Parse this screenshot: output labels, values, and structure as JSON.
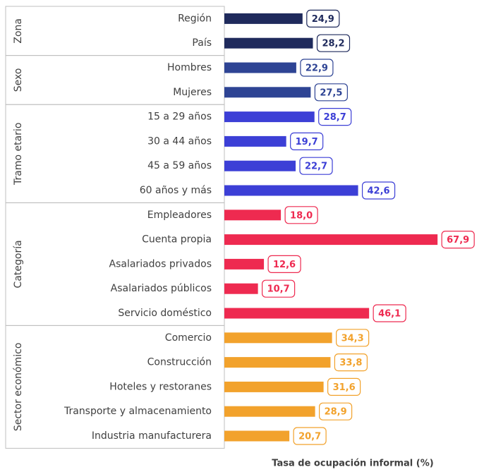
{
  "chart_data": {
    "type": "bar",
    "orientation": "horizontal",
    "x_label": "Tasa de ocupación informal (%)",
    "groups": [
      {
        "name": "Zona",
        "color": "#1f2a5c",
        "categories": [
          "Región",
          "País"
        ],
        "values": [
          24.9,
          28.2
        ],
        "value_labels": [
          "24,9",
          "28,2"
        ]
      },
      {
        "name": "Sexo",
        "color": "#2e4494",
        "categories": [
          "Hombres",
          "Mujeres"
        ],
        "values": [
          22.9,
          27.5
        ],
        "value_labels": [
          "22,9",
          "27,5"
        ]
      },
      {
        "name": "Tramo etario",
        "color": "#3c3fd6",
        "categories": [
          "15 a 29 años",
          "30 a 44 años",
          "45 a 59 años",
          "60 años y más"
        ],
        "values": [
          28.7,
          19.7,
          22.7,
          42.6
        ],
        "value_labels": [
          "28,7",
          "19,7",
          "22,7",
          "42,6"
        ]
      },
      {
        "name": "Categoría",
        "color": "#ee2a50",
        "categories": [
          "Empleadores",
          "Cuenta propia",
          "Asalariados privados",
          "Asalariados públicos",
          "Servicio doméstico"
        ],
        "values": [
          18.0,
          67.9,
          12.6,
          10.7,
          46.1
        ],
        "value_labels": [
          "18,0",
          "67,9",
          "12,6",
          "10,7",
          "46,1"
        ]
      },
      {
        "name": "Sector económico",
        "color": "#f2a22c",
        "categories": [
          "Comercio",
          "Construcción",
          "Hoteles y restoranes",
          "Transporte y almacenamiento",
          "Industria manufacturera"
        ],
        "values": [
          34.3,
          33.8,
          31.6,
          28.9,
          20.7
        ],
        "value_labels": [
          "34,3",
          "33,8",
          "31,6",
          "28,9",
          "20,7"
        ]
      }
    ]
  }
}
